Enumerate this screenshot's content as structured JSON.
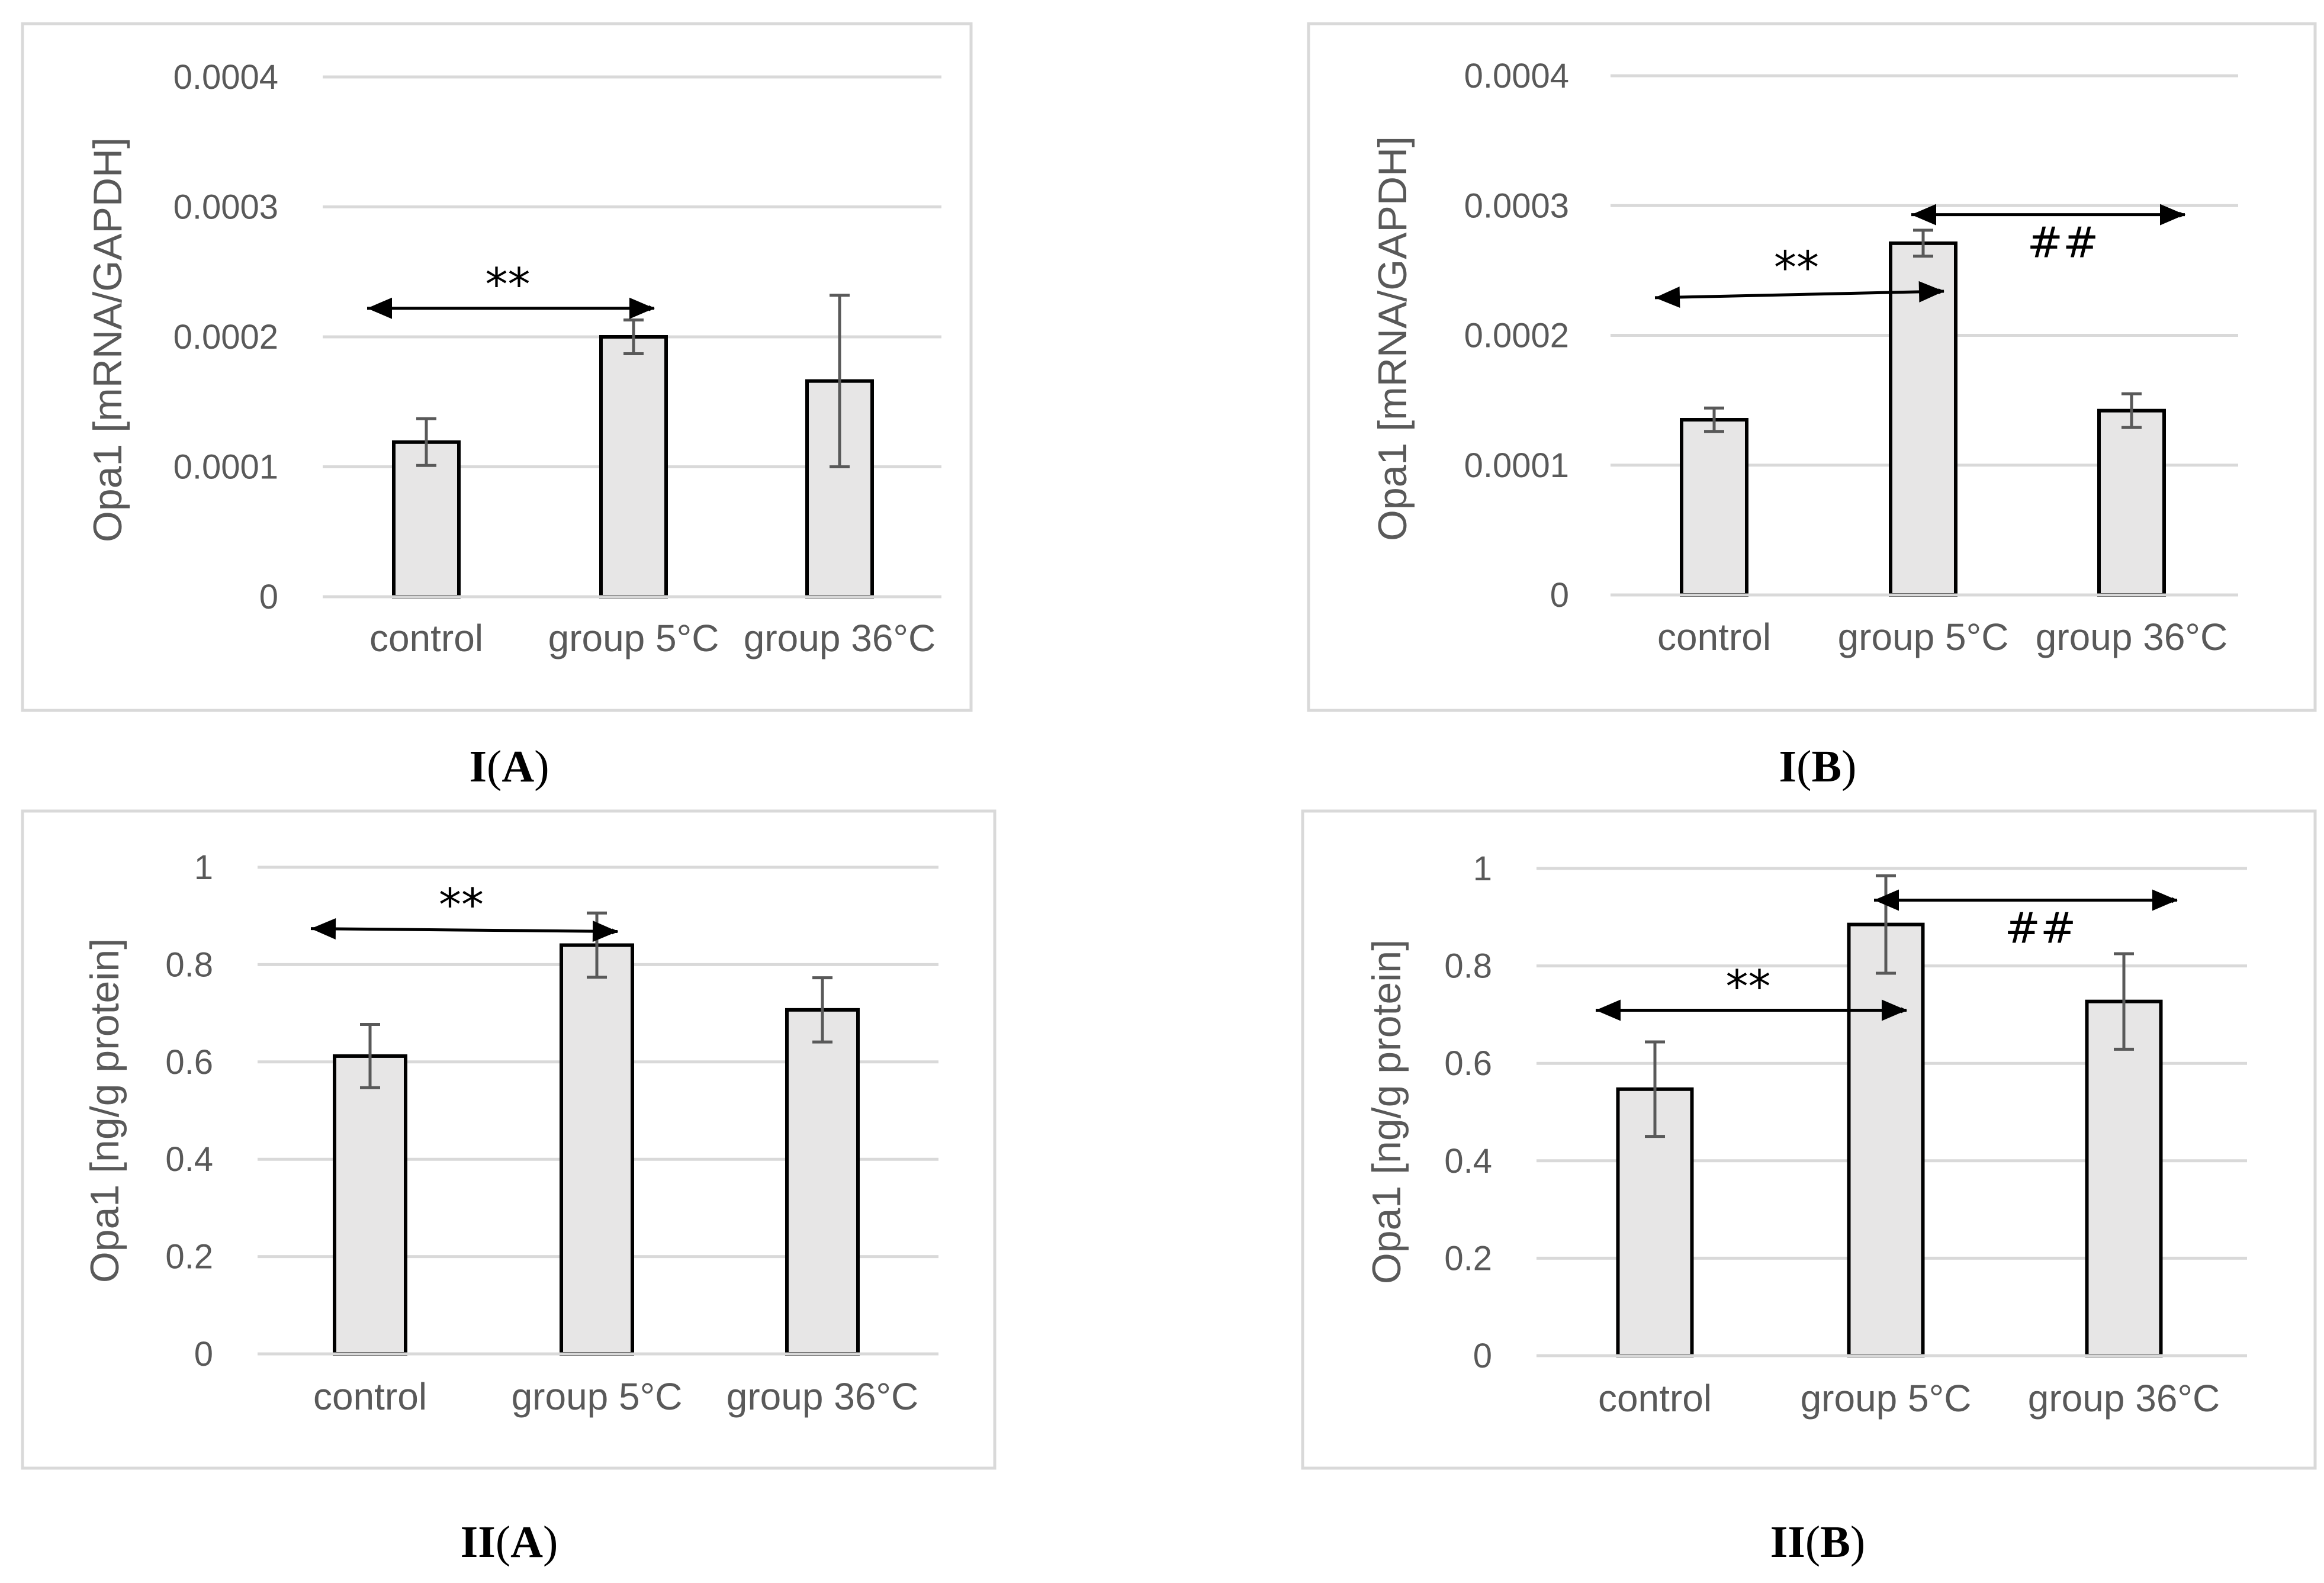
{
  "figure": {
    "colors": {
      "bar_fill": "#e7e6e6",
      "bar_stroke": "#000000",
      "grid": "#d9d9d9",
      "frame": "#d9d9d9",
      "error_bar": "#595959",
      "text": "#595959"
    }
  },
  "chart_data": [
    {
      "type": "bar",
      "panel": "I(A)",
      "panel_label": {
        "roman": "I",
        "open": "(",
        "letter": "A",
        "close": ")"
      },
      "ylabel": "Opa1 [mRNA/GAPDH]",
      "ylim": [
        0,
        0.0004
      ],
      "yticks": [
        0,
        0.0001,
        0.0002,
        0.0003,
        0.0004
      ],
      "ytick_labels": [
        "0",
        "0.0001",
        "0.0002",
        "0.0003",
        "0.0004"
      ],
      "categories": [
        "control",
        "group 5°C",
        "group 36°C"
      ],
      "values": [
        0.000119,
        0.0002,
        0.000166
      ],
      "errors": [
        1.8e-05,
        1.3e-05,
        6.6e-05
      ],
      "grid": true,
      "annotations": [
        {
          "text": "**",
          "from": 0,
          "to": 1,
          "y_start": 0.000222,
          "y_end": 0.000222
        }
      ]
    },
    {
      "type": "bar",
      "panel": "I(B)",
      "panel_label": {
        "roman": "I",
        "open": "(",
        "letter": "B",
        "close": ")"
      },
      "ylabel": "Opa1 [mRNA/GAPDH]",
      "ylim": [
        0,
        0.0004
      ],
      "yticks": [
        0,
        0.0001,
        0.0002,
        0.0003,
        0.0004
      ],
      "ytick_labels": [
        "0",
        "0.0001",
        "0.0002",
        "0.0003",
        "0.0004"
      ],
      "categories": [
        "control",
        "group 5°C",
        "group 36°C"
      ],
      "values": [
        0.000135,
        0.000271,
        0.000142
      ],
      "errors": [
        9e-06,
        1e-05,
        1.3e-05
      ],
      "grid": true,
      "annotations": [
        {
          "text": "**",
          "from": 0,
          "to": 1,
          "y_start": 0.000229,
          "y_end": 0.000234
        },
        {
          "text": "##",
          "from": 1,
          "to": 2,
          "y_start": 0.000293,
          "y_end": 0.000293
        }
      ]
    },
    {
      "type": "bar",
      "panel": "II(A)",
      "panel_label": {
        "roman": "II",
        "open": "(",
        "letter": "A",
        "close": ")"
      },
      "ylabel": "Opa1 [ng/g protein]",
      "ylim": [
        0,
        1
      ],
      "yticks": [
        0,
        0.2,
        0.4,
        0.6,
        0.8,
        1
      ],
      "ytick_labels": [
        "0",
        "0.2",
        "0.4",
        "0.6",
        "0.8",
        "1"
      ],
      "categories": [
        "control",
        "group 5°C",
        "group 36°C"
      ],
      "values": [
        0.612,
        0.84,
        0.707
      ],
      "errors": [
        0.065,
        0.066,
        0.066
      ],
      "grid": true,
      "annotations": [
        {
          "text": "**",
          "from": 0,
          "to": 1,
          "y_start": 0.874,
          "y_end": 0.868
        }
      ]
    },
    {
      "type": "bar",
      "panel": "II(B)",
      "panel_label": {
        "roman": "II",
        "open": "(",
        "letter": "B",
        "close": ")"
      },
      "ylabel": "Opa1 [ng/g protein]",
      "ylim": [
        0,
        1
      ],
      "yticks": [
        0,
        0.2,
        0.4,
        0.6,
        0.8,
        1
      ],
      "ytick_labels": [
        "0",
        "0.2",
        "0.4",
        "0.6",
        "0.8",
        "1"
      ],
      "categories": [
        "control",
        "group 5°C",
        "group 36°C"
      ],
      "values": [
        0.547,
        0.885,
        0.727
      ],
      "errors": [
        0.097,
        0.1,
        0.098
      ],
      "grid": true,
      "annotations": [
        {
          "text": "**",
          "from": 0,
          "to": 1,
          "y_start": 0.709,
          "y_end": 0.709
        },
        {
          "text": "##",
          "from": 1,
          "to": 2,
          "y_start": 0.935,
          "y_end": 0.935
        }
      ]
    }
  ]
}
